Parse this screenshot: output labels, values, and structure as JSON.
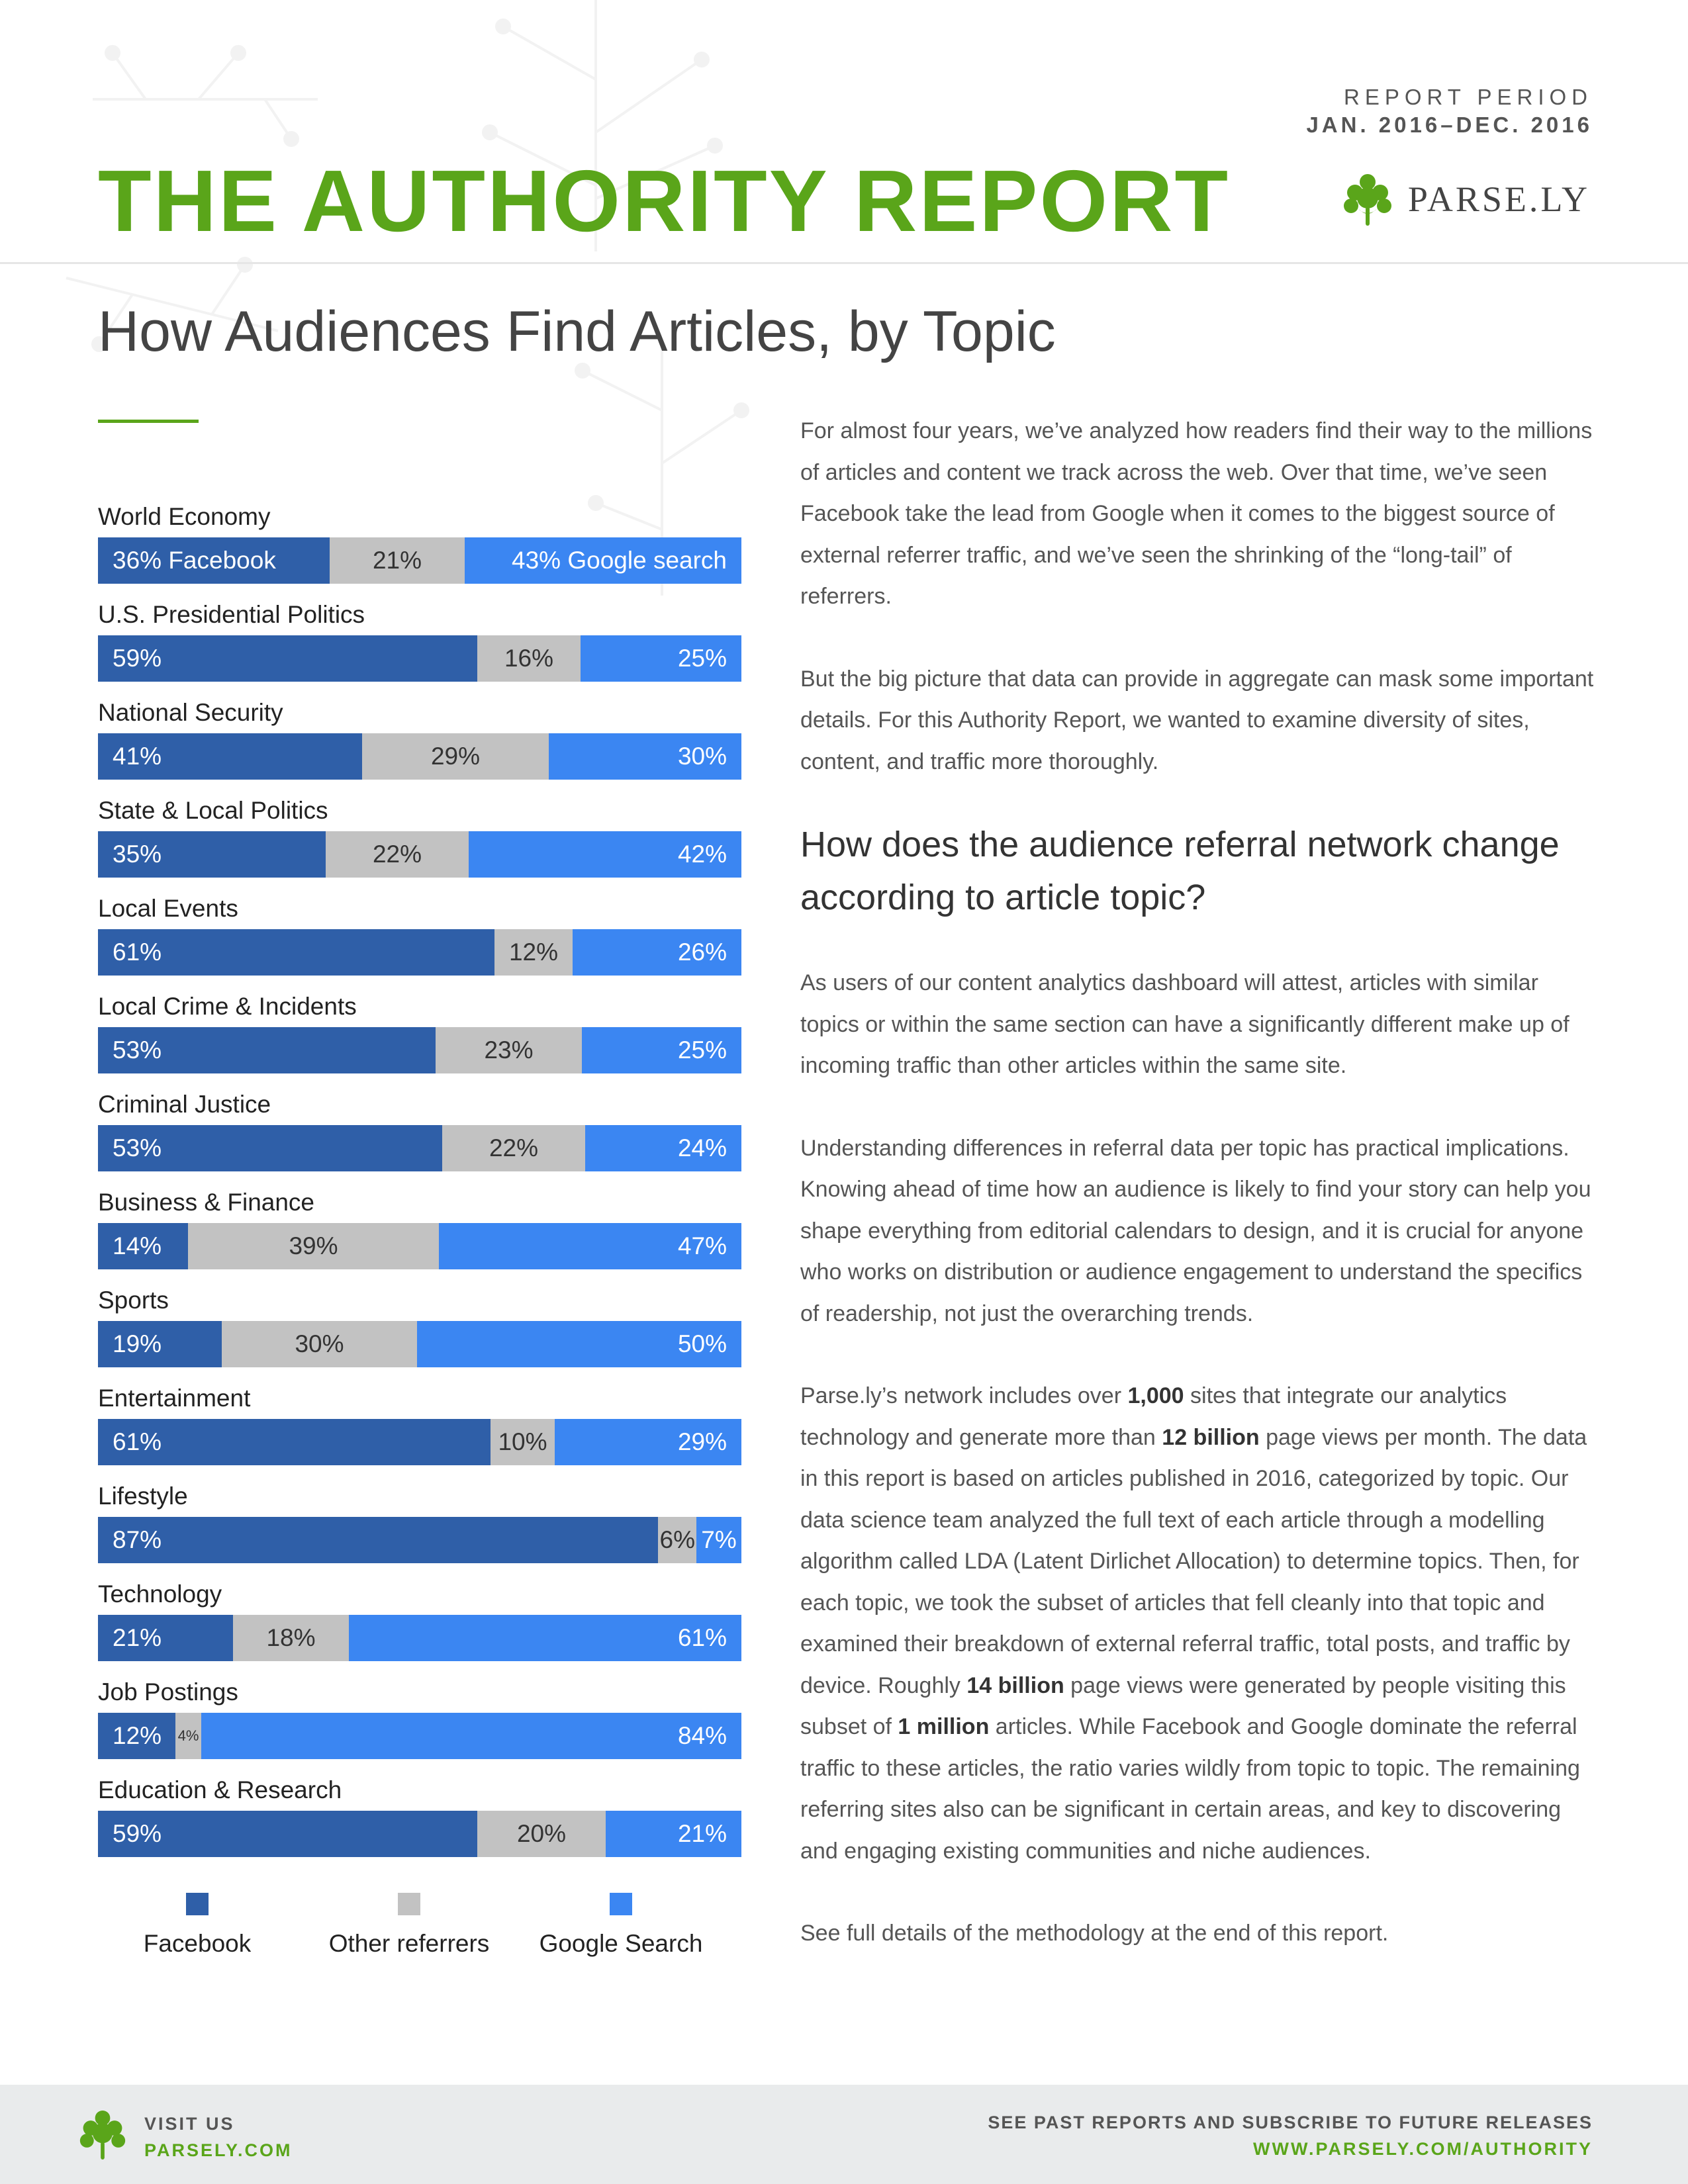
{
  "header": {
    "report_period_label": "REPORT PERIOD",
    "report_period_value": "JAN. 2016–DEC. 2016",
    "title": "THE AUTHORITY REPORT",
    "brand_name": "PARSE.LY"
  },
  "section_title": "How Audiences Find Articles, by Topic",
  "colors": {
    "facebook": "#2f5fa8",
    "other": "#c2c2c2",
    "google": "#3b86f2",
    "accent": "#5aa51a"
  },
  "chart_data": {
    "type": "bar",
    "orientation": "horizontal",
    "stacked": true,
    "categories": [
      "World Economy",
      "U.S. Presidential Politics",
      "National Security",
      "State & Local Politics",
      "Local Events",
      "Local Crime & Incidents",
      "Criminal Justice",
      "Business & Finance",
      "Sports",
      "Entertainment",
      "Lifestyle",
      "Technology",
      "Job Postings",
      "Education & Research"
    ],
    "series": [
      {
        "name": "Facebook",
        "values": [
          36,
          59,
          41,
          35,
          61,
          53,
          53,
          14,
          19,
          61,
          87,
          21,
          12,
          59
        ]
      },
      {
        "name": "Other referrers",
        "values": [
          21,
          16,
          29,
          22,
          12,
          23,
          22,
          39,
          30,
          10,
          6,
          18,
          4,
          20
        ]
      },
      {
        "name": "Google Search",
        "values": [
          43,
          25,
          30,
          42,
          26,
          25,
          24,
          47,
          50,
          29,
          7,
          61,
          84,
          21
        ]
      }
    ],
    "first_row_labels": [
      "36% Facebook",
      "21%",
      "43% Google search"
    ],
    "legend_position": "bottom",
    "xlim": [
      0,
      100
    ]
  },
  "legend": {
    "facebook": "Facebook",
    "other": "Other referrers",
    "google": "Google Search"
  },
  "body": {
    "p1": "For almost four years, we’ve analyzed how readers find their way to the millions of articles and content we track across the web. Over that time, we’ve seen Facebook take the lead from Google when it comes to the biggest source of external referrer traffic, and we’ve seen the shrinking of the “long-tail” of referrers.",
    "p2": "But the big picture that data can provide in aggregate can mask some important details. For this Authority Report, we wanted to examine diversity of sites, content, and traffic more thoroughly.",
    "heading": "How does the audience referral network change according to article topic?",
    "p3": "As users of our content analytics dashboard will attest, articles with similar topics or within the same section can have a significantly different make up of incoming traffic than other articles within the same site.",
    "p4": "Understanding differences in referral data per topic has practical implications. Knowing ahead of time how an audience is likely to find your story can help you shape everything from editorial calendars to design, and it is crucial for anyone who works on distribution or audience engagement to understand the specifics of readership, not just the overarching trends.",
    "p5_a": "Parse.ly’s network includes over ",
    "p5_b1": "1,000",
    "p5_c": " sites that integrate our analytics technology and generate more than ",
    "p5_b2": "12 billion",
    "p5_d": " page views per month. The data in this report is based on articles published in 2016, categorized by topic. Our data science team analyzed the full text of each article through a modelling algorithm called LDA (Latent Dirlichet Allocation) to determine topics. Then, for each topic, we took the subset of articles that fell cleanly into that topic and examined their breakdown of external referral traffic, total posts, and traffic by device. Roughly ",
    "p5_b3": "14 billion",
    "p5_e": " page views were generated by people visiting this subset of ",
    "p5_b4": "1 million",
    "p5_f": " articles. While Facebook and Google dominate the referral traffic to these articles, the ratio varies wildly from topic to topic. The remaining referring sites also can be significant in certain areas, and key to discovering and engaging existing communities and niche audiences.",
    "p6": "See full details of the methodology at the end of this report."
  },
  "footer": {
    "visit_label": "VISIT US",
    "visit_url": "PARSELY.COM",
    "past_reports": "SEE PAST REPORTS AND SUBSCRIBE TO FUTURE RELEASES",
    "authority_url": "WWW.PARSELY.COM/AUTHORITY"
  }
}
